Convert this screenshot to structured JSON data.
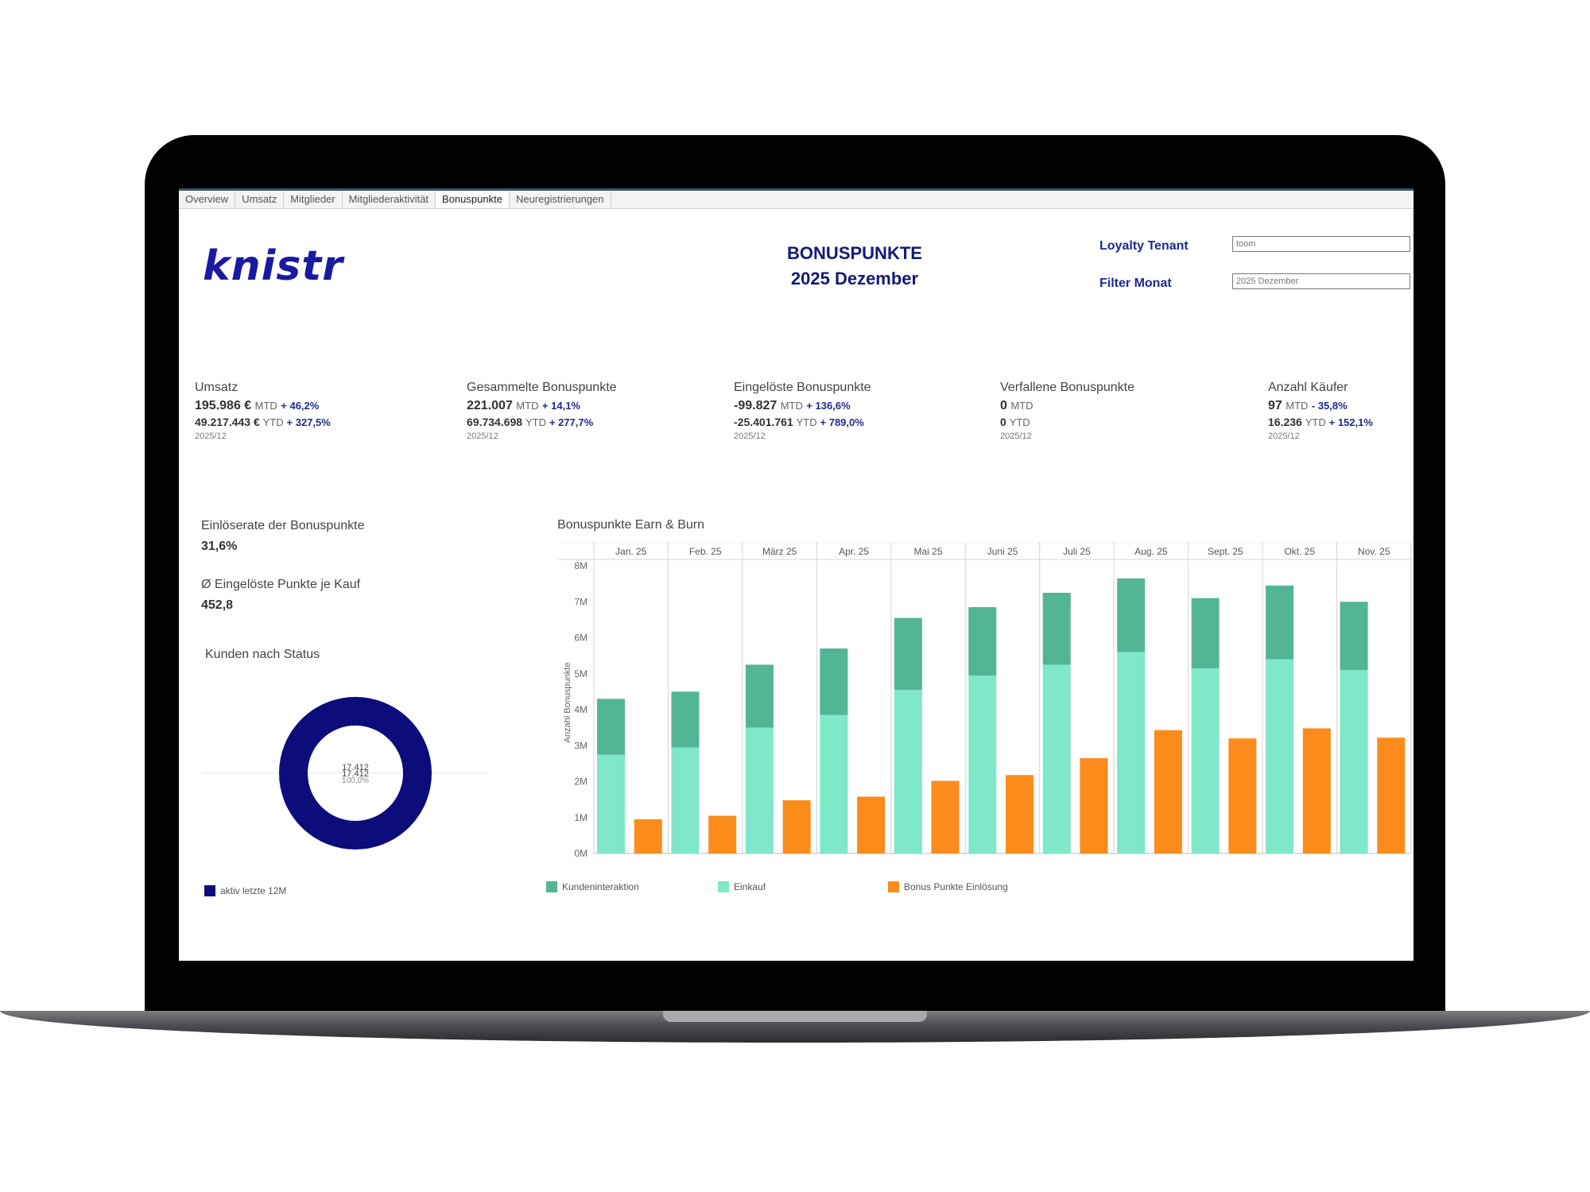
{
  "tabs": [
    {
      "label": "Overview",
      "active": false
    },
    {
      "label": "Umsatz",
      "active": false
    },
    {
      "label": "Mitglieder",
      "active": false
    },
    {
      "label": "Mitgliederaktivität",
      "active": false
    },
    {
      "label": "Bonuspunkte",
      "active": true
    },
    {
      "label": "Neuregistrierungen",
      "active": false
    }
  ],
  "logo": "knistr",
  "header": {
    "title": "BONUSPUNKTE",
    "subtitle": "2025 Dezember"
  },
  "filters": {
    "tenant_label": "Loyalty Tenant",
    "tenant_value": "toom",
    "month_label": "Filter Monat",
    "month_value": "2025 Dezember"
  },
  "kpis": [
    {
      "label": "Umsatz",
      "mtd_value": "195.986 €",
      "mtd_unit": "MTD",
      "mtd_change": "+ 46,2%",
      "ytd_value": "49.217.443 €",
      "ytd_unit": "YTD",
      "ytd_change": "+ 327,5%",
      "period": "2025/12"
    },
    {
      "label": "Gesammelte Bonuspunkte",
      "mtd_value": "221.007",
      "mtd_unit": "MTD",
      "mtd_change": "+ 14,1%",
      "ytd_value": "69.734.698",
      "ytd_unit": "YTD",
      "ytd_change": "+ 277,7%",
      "period": "2025/12"
    },
    {
      "label": "Eingelöste Bonuspunkte",
      "mtd_value": "-99.827",
      "mtd_unit": "MTD",
      "mtd_change": "+ 136,6%",
      "ytd_value": "-25.401.761",
      "ytd_unit": "YTD",
      "ytd_change": "+ 789,0%",
      "period": "2025/12"
    },
    {
      "label": "Verfallene Bonuspunkte",
      "mtd_value": "0",
      "mtd_unit": "MTD",
      "mtd_change": "",
      "ytd_value": "0",
      "ytd_unit": "YTD",
      "ytd_change": "",
      "period": "2025/12"
    },
    {
      "label": "Anzahl Käufer",
      "mtd_value": "97",
      "mtd_unit": "MTD",
      "mtd_change": "- 35,8%",
      "ytd_value": "16.236",
      "ytd_unit": "YTD",
      "ytd_change": "+ 152,1%",
      "period": "2025/12"
    }
  ],
  "side": {
    "redemption_label": "Einlöserate der Bonuspunkte",
    "redemption_value": "31,6%",
    "avg_label": "Ø Eingelöste Punkte je Kauf",
    "avg_value": "452,8",
    "status_title": "Kunden nach Status",
    "donut_center_1": "17.412",
    "donut_center_2": "17.412",
    "donut_center_3": "100,0%",
    "donut_legend": "aktiv letzte 12M",
    "donut_color": "#0c0c7a"
  },
  "chart_title": "Bonuspunkte Earn & Burn",
  "chart_data": {
    "type": "bar",
    "categories": [
      "Jan. 25",
      "Feb. 25",
      "März 25",
      "Apr. 25",
      "Mai 25",
      "Juni 25",
      "Juli 25",
      "Aug. 25",
      "Sept. 25",
      "Okt. 25",
      "Nov. 25"
    ],
    "ylabel": "Anzahl Bonuspunkte",
    "ylim": [
      0,
      8000000
    ],
    "yticks": [
      "0M",
      "1M",
      "2M",
      "3M",
      "4M",
      "5M",
      "6M",
      "7M",
      "8M"
    ],
    "series": [
      {
        "name": "Kundeninteraktion",
        "stack": "earn",
        "color": "#52b596",
        "values": [
          1550000,
          1550000,
          1750000,
          1850000,
          2000000,
          1900000,
          2000000,
          2050000,
          1950000,
          2050000,
          1900000
        ]
      },
      {
        "name": "Einkauf",
        "stack": "earn",
        "color": "#7ee8c9",
        "values": [
          2750000,
          2950000,
          3500000,
          3850000,
          4550000,
          4950000,
          5250000,
          5600000,
          5150000,
          5400000,
          5100000
        ]
      },
      {
        "name": "Bonus Punkte Einlösung",
        "stack": "burn",
        "color": "#fb8c1c",
        "values": [
          950000,
          1050000,
          1480000,
          1580000,
          2020000,
          2180000,
          2650000,
          3430000,
          3200000,
          3480000,
          3220000
        ]
      }
    ],
    "legend_position": "bottom-left"
  }
}
